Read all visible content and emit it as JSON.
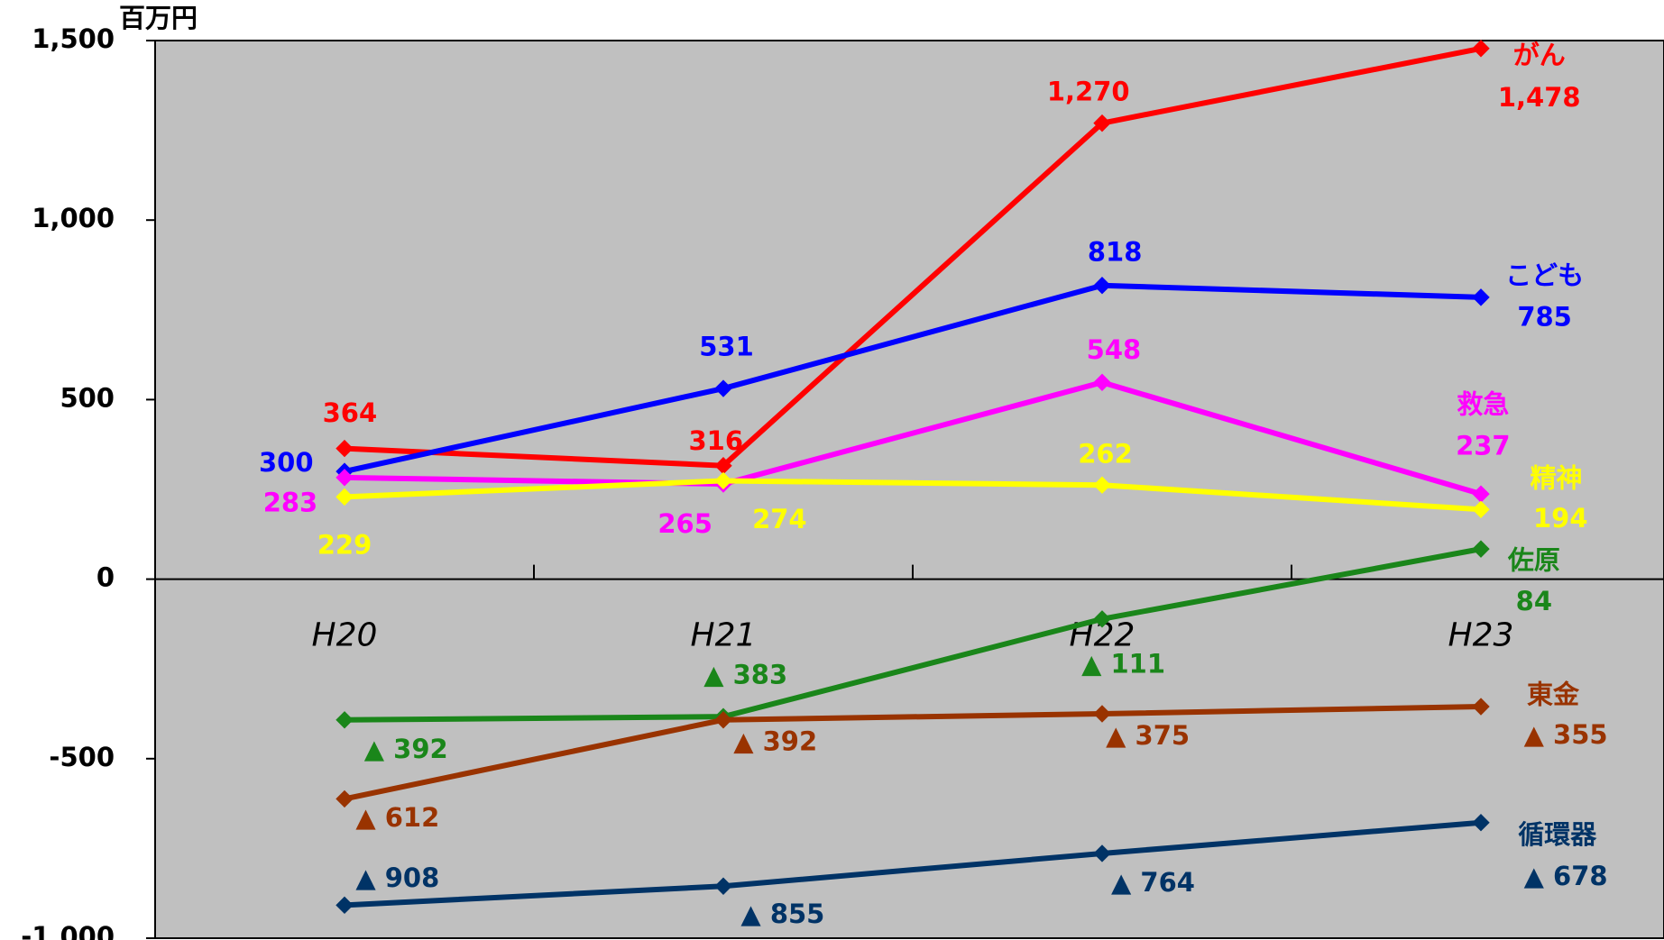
{
  "chart_data": {
    "type": "line",
    "y_unit": "百万円",
    "categories": [
      "H20",
      "H21",
      "H22",
      "H23"
    ],
    "ylim": [
      -1000,
      1500
    ],
    "yticks": [
      {
        "value": -1000,
        "label": "-1,000"
      },
      {
        "value": -500,
        "label": "-500"
      },
      0,
      500,
      {
        "value": 1000,
        "label": "1,000"
      },
      {
        "value": 1500,
        "label": "1,500"
      }
    ],
    "background": "#c0c0c0",
    "series": [
      {
        "name": "がん",
        "color": "#ff0000",
        "values": [
          364,
          316,
          1270,
          1478
        ],
        "value_labels": [
          "364",
          "316",
          "1,270",
          "1,478"
        ]
      },
      {
        "name": "こども",
        "color": "#0000ff",
        "values": [
          300,
          531,
          818,
          785
        ],
        "value_labels": [
          "300",
          "531",
          "818",
          "785"
        ]
      },
      {
        "name": "救急",
        "color": "#ff00ff",
        "values": [
          283,
          265,
          548,
          237
        ],
        "value_labels": [
          "283",
          "265",
          "548",
          "237"
        ]
      },
      {
        "name": "精神",
        "color": "#ffff00",
        "values": [
          229,
          274,
          262,
          194
        ],
        "value_labels": [
          "229",
          "274",
          "262",
          "194"
        ]
      },
      {
        "name": "佐原",
        "color": "#1a861a",
        "values": [
          -392,
          -383,
          -111,
          84
        ],
        "value_labels": [
          "▲ 392",
          "▲ 383",
          "▲ 111",
          "84"
        ]
      },
      {
        "name": "東金",
        "color": "#993300",
        "values": [
          -612,
          -392,
          -375,
          -355
        ],
        "value_labels": [
          "▲ 612",
          "▲ 392",
          "▲ 375",
          "▲ 355"
        ]
      },
      {
        "name": "循環器",
        "color": "#003366",
        "values": [
          -908,
          -855,
          -764,
          -678
        ],
        "value_labels": [
          "▲ 908",
          "▲ 855",
          "▲ 764",
          "▲ 678"
        ]
      }
    ]
  }
}
